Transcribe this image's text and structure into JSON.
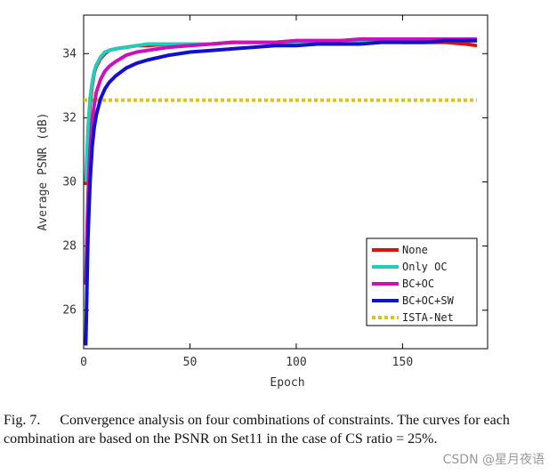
{
  "chart_data": {
    "type": "line",
    "xlabel": "Epoch",
    "ylabel": "Average PSNR (dB)",
    "xlim": [
      0,
      190
    ],
    "ylim": [
      24.8,
      35.2
    ],
    "xticks": [
      0,
      50,
      100,
      150
    ],
    "yticks": [
      26,
      28,
      30,
      32,
      34
    ],
    "legend_position": "bottom-right",
    "series": [
      {
        "name": "None",
        "color": "#dd1111",
        "style": "solid",
        "x": [
          1,
          2,
          3,
          4,
          5,
          6,
          8,
          10,
          12,
          15,
          20,
          25,
          30,
          40,
          50,
          60,
          70,
          80,
          90,
          100,
          110,
          120,
          130,
          140,
          150,
          160,
          170,
          180,
          185
        ],
        "y": [
          29.9,
          31.4,
          32.4,
          33.0,
          33.4,
          33.6,
          33.85,
          34.0,
          34.1,
          34.15,
          34.2,
          34.25,
          34.25,
          34.3,
          34.3,
          34.3,
          34.35,
          34.35,
          34.35,
          34.4,
          34.4,
          34.4,
          34.4,
          34.4,
          34.35,
          34.35,
          34.35,
          34.3,
          34.25
        ]
      },
      {
        "name": "Only OC",
        "color": "#22ccbb",
        "style": "solid",
        "x": [
          1,
          2,
          3,
          4,
          5,
          6,
          8,
          10,
          12,
          15,
          20,
          25,
          30,
          40,
          50,
          60,
          70,
          80,
          90,
          100,
          110,
          120,
          130,
          140,
          150,
          160,
          170,
          180,
          185
        ],
        "y": [
          30.0,
          31.6,
          32.6,
          33.1,
          33.45,
          33.65,
          33.9,
          34.05,
          34.1,
          34.15,
          34.2,
          34.25,
          34.3,
          34.3,
          34.3,
          34.3,
          34.35,
          34.35,
          34.35,
          34.35,
          34.35,
          34.35,
          34.4,
          34.4,
          34.4,
          34.4,
          34.4,
          34.4,
          34.4
        ]
      },
      {
        "name": "BC+OC",
        "color": "#cc11bb",
        "style": "solid",
        "x": [
          1,
          2,
          3,
          4,
          5,
          6,
          8,
          10,
          12,
          15,
          20,
          25,
          30,
          40,
          50,
          60,
          70,
          80,
          90,
          100,
          110,
          120,
          130,
          140,
          150,
          160,
          170,
          180,
          185
        ],
        "y": [
          26.8,
          29.5,
          31.0,
          31.9,
          32.4,
          32.8,
          33.2,
          33.45,
          33.6,
          33.75,
          33.95,
          34.05,
          34.1,
          34.2,
          34.25,
          34.3,
          34.35,
          34.35,
          34.35,
          34.4,
          34.4,
          34.4,
          34.45,
          34.45,
          34.45,
          34.45,
          34.45,
          34.45,
          34.45
        ]
      },
      {
        "name": "BC+OC+SW",
        "color": "#1111cc",
        "style": "solid",
        "x": [
          1,
          2,
          3,
          4,
          5,
          6,
          8,
          10,
          12,
          15,
          20,
          25,
          30,
          40,
          50,
          60,
          70,
          80,
          90,
          100,
          110,
          120,
          130,
          140,
          150,
          160,
          170,
          180,
          185
        ],
        "y": [
          24.9,
          28.2,
          30.0,
          31.1,
          31.7,
          32.1,
          32.6,
          32.9,
          33.1,
          33.3,
          33.55,
          33.7,
          33.8,
          33.95,
          34.05,
          34.1,
          34.15,
          34.2,
          34.25,
          34.25,
          34.3,
          34.3,
          34.3,
          34.35,
          34.35,
          34.35,
          34.4,
          34.4,
          34.4
        ]
      },
      {
        "name": "ISTA-Net",
        "color": "#ddc411",
        "style": "dotted",
        "x": [
          0,
          185
        ],
        "y": [
          32.55,
          32.55
        ]
      }
    ]
  },
  "caption": {
    "label": "Fig. 7.",
    "text": "Convergence analysis on four combinations of constraints. The curves for each combination are based on the PSNR on Set11 in the case of CS ratio = 25%."
  },
  "watermark": "CSDN @星月夜语"
}
